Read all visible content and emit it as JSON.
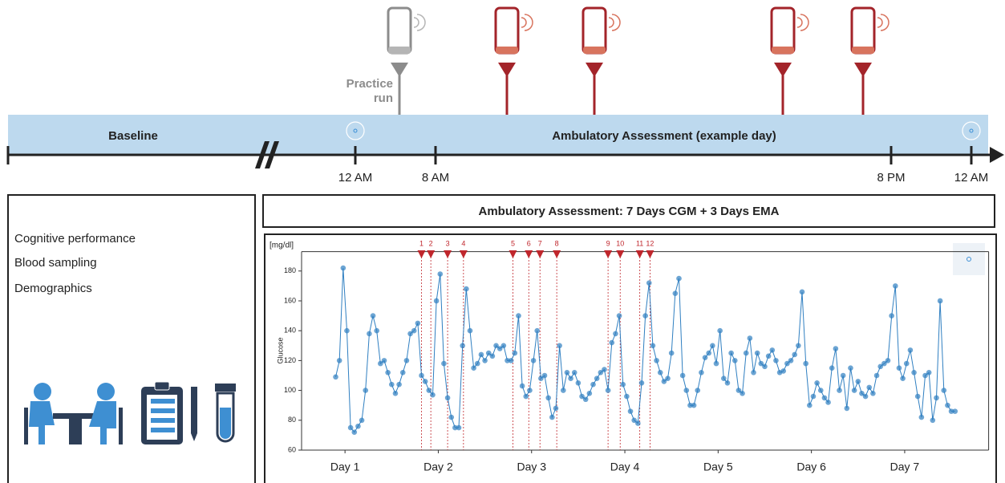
{
  "timeline": {
    "practice_run": [
      "Practice",
      "run"
    ],
    "baseline": "Baseline",
    "ambulatory": "Ambulatory Assessment (example day)",
    "time_labels": [
      "12 AM",
      "8 AM",
      "8 PM",
      "12 AM"
    ]
  },
  "baseline_panel": {
    "items": [
      "Cognitive performance",
      "Blood sampling",
      "Demographics"
    ]
  },
  "ambulatory_header": "Ambulatory Assessment: 7 Days CGM + 3 Days EMA",
  "chart_data": {
    "type": "line",
    "unit_label": "[mg/dl]",
    "y_label": "Glucose",
    "color": "#2f7fc1",
    "x": [
      0.4,
      0.44,
      0.48,
      0.52,
      0.56,
      0.6,
      0.64,
      0.68,
      0.72,
      0.76,
      0.8,
      0.84,
      0.88,
      0.92,
      0.96,
      1,
      1.04,
      1.08,
      1.12,
      1.16,
      1.2,
      1.24,
      1.28,
      1.32,
      1.36,
      1.4,
      1.44,
      1.48,
      1.52,
      1.56,
      1.6,
      1.64,
      1.68,
      1.72,
      1.76,
      1.8,
      1.84,
      1.88,
      1.92,
      1.96,
      2,
      2.04,
      2.08,
      2.12,
      2.16,
      2.2,
      2.24,
      2.28,
      2.32,
      2.36,
      2.4,
      2.44,
      2.48,
      2.52,
      2.56,
      2.6,
      2.64,
      2.68,
      2.72,
      2.76,
      2.8,
      2.84,
      2.88,
      2.92,
      2.96,
      3,
      3.04,
      3.08,
      3.12,
      3.16,
      3.2,
      3.24,
      3.28,
      3.32,
      3.36,
      3.4,
      3.44,
      3.48,
      3.52,
      3.56,
      3.6,
      3.64,
      3.68,
      3.72,
      3.76,
      3.8,
      3.84,
      3.88,
      3.92,
      3.96,
      4,
      4.04,
      4.08,
      4.12,
      4.16,
      4.2,
      4.24,
      4.28,
      4.32,
      4.36,
      4.4,
      4.44,
      4.48,
      4.52,
      4.56,
      4.6,
      4.64,
      4.68,
      4.72,
      4.76,
      4.8,
      4.84,
      4.88,
      4.92,
      4.96,
      5,
      5.04,
      5.08,
      5.12,
      5.16,
      5.2,
      5.24,
      5.28,
      5.32,
      5.36,
      5.4,
      5.44,
      5.48,
      5.52,
      5.56,
      5.6,
      5.64,
      5.68,
      5.72,
      5.76,
      5.8,
      5.84,
      5.88,
      5.92,
      5.96,
      6,
      6.04,
      6.08,
      6.12,
      6.16,
      6.2,
      6.24,
      6.28,
      6.32,
      6.36,
      6.4,
      6.44,
      6.48,
      6.52,
      6.56,
      6.6,
      6.64,
      6.68,
      6.72,
      6.76,
      6.8,
      6.84,
      6.88,
      6.92,
      6.96,
      7,
      7.04
    ],
    "values": [
      109,
      120,
      182,
      140,
      75,
      72,
      76,
      80,
      100,
      138,
      150,
      140,
      118,
      120,
      112,
      104,
      98,
      104,
      112,
      120,
      138,
      140,
      145,
      110,
      106,
      100,
      97,
      160,
      178,
      118,
      95,
      82,
      75,
      75,
      130,
      168,
      140,
      115,
      118,
      124,
      120,
      125,
      123,
      130,
      128,
      130,
      120,
      120,
      125,
      150,
      103,
      96,
      100,
      120,
      140,
      108,
      110,
      95,
      82,
      88,
      130,
      100,
      112,
      108,
      112,
      105,
      96,
      94,
      98,
      104,
      108,
      112,
      114,
      100,
      132,
      138,
      150,
      104,
      96,
      86,
      80,
      78,
      105,
      150,
      172,
      130,
      120,
      112,
      106,
      108,
      125,
      165,
      175,
      110,
      100,
      90,
      90,
      100,
      112,
      122,
      125,
      130,
      118,
      140,
      108,
      105,
      125,
      120,
      100,
      98,
      125,
      135,
      112,
      125,
      118,
      116,
      123,
      127,
      120,
      112,
      113,
      118,
      120,
      124,
      130,
      166,
      118,
      90,
      96,
      105,
      100,
      95,
      92,
      115,
      128,
      100,
      110,
      88,
      115,
      100,
      106,
      98,
      96,
      102,
      98,
      110,
      116,
      118,
      120,
      150,
      170,
      115,
      108,
      118,
      127,
      112,
      96,
      82,
      110,
      112,
      80,
      95,
      160,
      100,
      90,
      86,
      86
    ],
    "xlim": [
      0,
      7.4
    ],
    "xticks": [
      {
        "value": 0.5,
        "label": "Day 1"
      },
      {
        "value": 1.5,
        "label": "Day 2"
      },
      {
        "value": 2.5,
        "label": "Day 3"
      },
      {
        "value": 3.5,
        "label": "Day 4"
      },
      {
        "value": 4.5,
        "label": "Day 5"
      },
      {
        "value": 5.5,
        "label": "Day 6"
      },
      {
        "value": 6.5,
        "label": "Day 7"
      }
    ],
    "ylim": [
      60,
      193
    ],
    "yticks": [
      60,
      80,
      100,
      120,
      140,
      160,
      180
    ],
    "ema_prompts": {
      "color": "#c0272d",
      "labels": [
        "1",
        "2",
        "3",
        "4",
        "5",
        "6",
        "7",
        "8",
        "9",
        "10",
        "11",
        "12"
      ],
      "x": [
        1.32,
        1.42,
        1.6,
        1.77,
        2.3,
        2.47,
        2.59,
        2.77,
        3.32,
        3.45,
        3.66,
        3.77
      ]
    }
  }
}
